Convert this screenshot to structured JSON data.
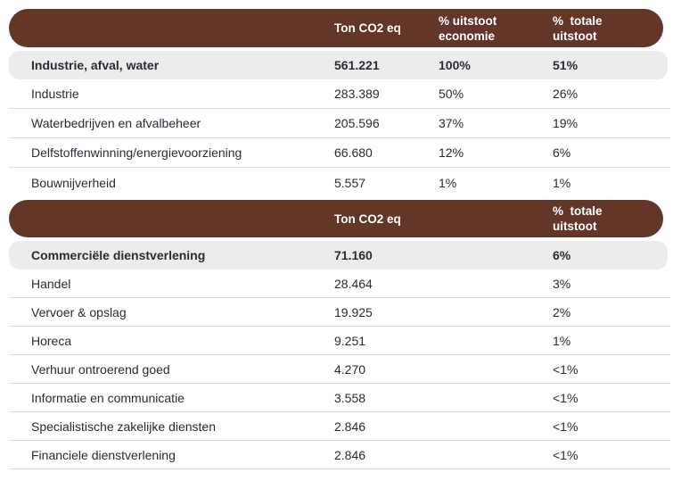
{
  "theme": {
    "header_bg": "#643627",
    "header_text": "#ffffff",
    "highlight_row_bg": "#ececec",
    "body_text": "#2b2b36",
    "separator": "#dedede"
  },
  "chart_data": [
    {
      "type": "table",
      "columns": [
        {
          "lines": [
            "Ton CO2 eq"
          ]
        },
        {
          "lines": [
            "% uitstoot",
            "economie"
          ]
        },
        {
          "lines": [
            "%  totale",
            "uitstoot"
          ]
        }
      ],
      "highlight_row": {
        "label": "Industrie, afval, water",
        "values": [
          "561.221",
          "100%",
          "51%"
        ]
      },
      "rows": [
        {
          "label": "Industrie",
          "values": [
            "283.389",
            "50%",
            "26%"
          ]
        },
        {
          "label": "Waterbedrijven en afvalbeheer",
          "values": [
            "205.596",
            "37%",
            "19%"
          ]
        },
        {
          "label": "Delfstoffenwinning/energievoorziening",
          "values": [
            "66.680",
            "12%",
            "6%"
          ]
        },
        {
          "label": "Bouwnijverheid",
          "values": [
            "5.557",
            "1%",
            "1%"
          ]
        }
      ]
    },
    {
      "type": "table",
      "columns": [
        {
          "lines": [
            "Ton CO2 eq"
          ]
        },
        {
          "lines": [
            "%  totale",
            "uitstoot"
          ]
        }
      ],
      "highlight_row": {
        "label": "Commerciële dienstverlening",
        "values": [
          "71.160",
          "6%"
        ]
      },
      "rows": [
        {
          "label": "Handel",
          "values": [
            "28.464",
            "3%"
          ]
        },
        {
          "label": "Vervoer & opslag",
          "values": [
            "19.925",
            "2%"
          ]
        },
        {
          "label": "Horeca",
          "values": [
            "9.251",
            "1%"
          ]
        },
        {
          "label": "Verhuur ontroerend goed",
          "values": [
            "4.270",
            "<1%"
          ]
        },
        {
          "label": "Informatie en communicatie",
          "values": [
            "3.558",
            "<1%"
          ]
        },
        {
          "label": "Specialistische zakelijke diensten",
          "values": [
            "2.846",
            "<1%"
          ]
        },
        {
          "label": "Financiele dienstverlening",
          "values": [
            "2.846",
            "<1%"
          ]
        }
      ]
    }
  ]
}
